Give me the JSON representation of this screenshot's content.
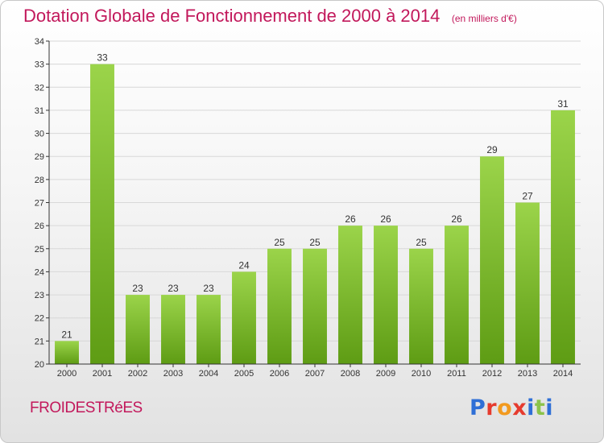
{
  "colors": {
    "title": "#c2185b",
    "bar_light": "#9bd44a",
    "bar_dark": "#5e9c14",
    "grid": "#d8d8d8",
    "axis": "#333333"
  },
  "footer": {
    "commune": "FROIDESTRéES",
    "logo_text": "Proxiti",
    "logo_colors": [
      "#2f6fd6",
      "#e63b2e",
      "#f29a1f",
      "#e63b2e",
      "#2f6fd6",
      "#8bc34a",
      "#2f6fd6"
    ]
  },
  "chart_data": {
    "type": "bar",
    "title": "Dotation Globale de Fonctionnement de 2000 à 2014",
    "subtitle": "(en milliers d'€)",
    "xlabel": "",
    "ylabel": "",
    "categories": [
      "2000",
      "2001",
      "2002",
      "2003",
      "2004",
      "2005",
      "2006",
      "2007",
      "2008",
      "2009",
      "2010",
      "2011",
      "2012",
      "2013",
      "2014"
    ],
    "values": [
      21,
      33,
      23,
      23,
      23,
      24,
      25,
      25,
      26,
      26,
      25,
      26,
      29,
      27,
      31
    ],
    "ylim": [
      20,
      34
    ],
    "yticks": [
      20,
      21,
      22,
      23,
      24,
      25,
      26,
      27,
      28,
      29,
      30,
      31,
      32,
      33,
      34
    ],
    "grid": true,
    "legend": "none"
  }
}
